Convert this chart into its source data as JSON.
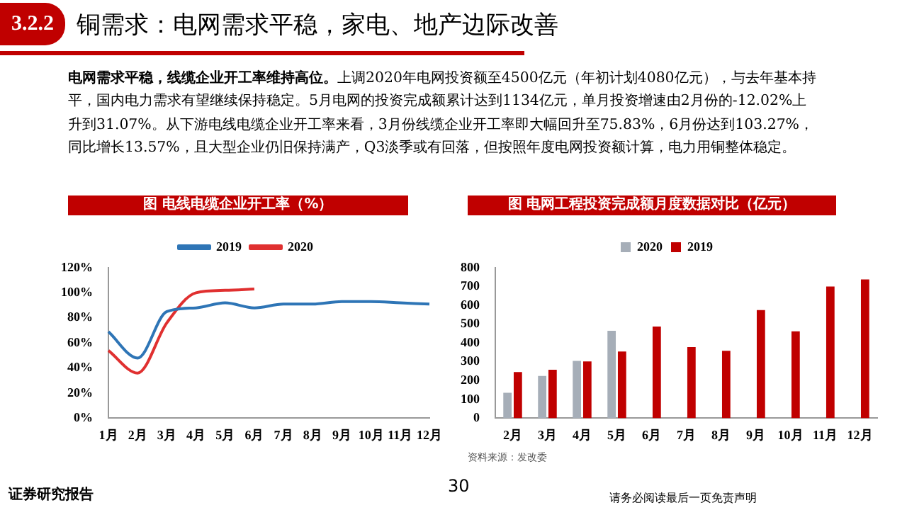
{
  "chart_data": [
    {
      "type": "line",
      "title": "图 电线电缆企业开工率（%）",
      "categories": [
        "1月",
        "2月",
        "3月",
        "4月",
        "5月",
        "6月",
        "7月",
        "8月",
        "9月",
        "10月",
        "11月",
        "12月"
      ],
      "series": [
        {
          "name": "2019",
          "color": "#2e75b6",
          "values": [
            69,
            48,
            85,
            88,
            92,
            88,
            91,
            91,
            93,
            93,
            92,
            91
          ]
        },
        {
          "name": "2020",
          "color": "#e03030",
          "values": [
            54,
            36,
            76,
            100,
            102,
            103,
            null,
            null,
            null,
            null,
            null,
            null
          ]
        }
      ],
      "ylim": [
        0,
        120
      ],
      "yticks": [
        {
          "value": 0,
          "label": "0%"
        },
        {
          "value": 20,
          "label": "20%"
        },
        {
          "value": 40,
          "label": "40%"
        },
        {
          "value": 60,
          "label": "60%"
        },
        {
          "value": 80,
          "label": "80%"
        },
        {
          "value": 100,
          "label": "100%"
        },
        {
          "value": 120,
          "label": "120%"
        }
      ],
      "legend": "top",
      "marker": "none",
      "annotations": [
        "3.2.2",
        "铜需求：电网需求平稳，家电、地产边际改善",
        "电网需求平稳，线缆企业开工率维持高位。",
        "上调2020年电网投资额至4500亿元（年初计划4080亿元），与去年基本持平，国内电力需求有望继续保持稳定。5月电网的投资完成额累计达到1134亿元，单月投资增速由2月份的-12.02%上升到31.07%。从下游电线电缆企业开工率来看，3月份线缆企业开工率即大幅回升至75.83%，6月份达到103.27%，同比增长13.57%，且大型企业仍旧保持满产，Q3淡季或有回落，但按照年度电网投资额计算，电力用铜整体稳定。"
      ]
    },
    {
      "type": "bar",
      "title": "图 电网工程投资完成额月度数据对比（亿元）",
      "categories": [
        "2月",
        "3月",
        "4月",
        "5月",
        "6月",
        "7月",
        "8月",
        "9月",
        "10月",
        "11月",
        "12月"
      ],
      "series": [
        {
          "name": "2020",
          "color": "#a6aeb8",
          "values": [
            135,
            225,
            305,
            465,
            null,
            null,
            null,
            null,
            null,
            null,
            null
          ]
        },
        {
          "name": "2019",
          "color": "#c00000",
          "values": [
            245,
            258,
            302,
            355,
            487,
            378,
            358,
            575,
            462,
            700,
            738
          ]
        }
      ],
      "ylim": [
        0,
        800
      ],
      "yticks": [
        0,
        100,
        200,
        300,
        400,
        500,
        600,
        700,
        800
      ],
      "legend": "top",
      "annotations": [
        "资料来源：发改委",
        "证券研究报告",
        "30",
        "请务必阅读最后一页免责声明"
      ]
    }
  ]
}
